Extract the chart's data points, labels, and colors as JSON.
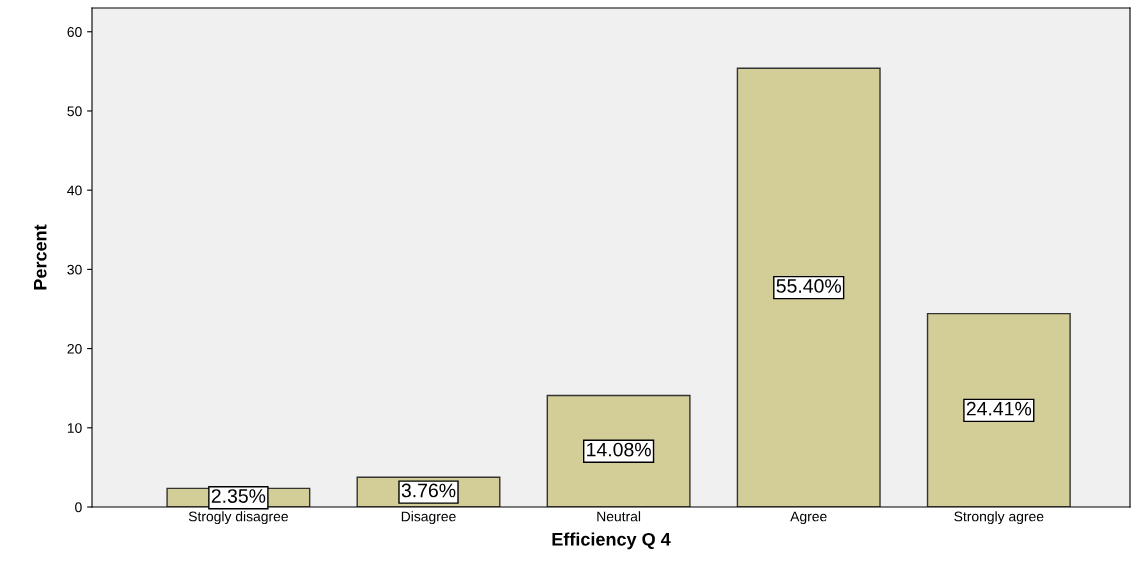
{
  "chart_data": {
    "type": "bar",
    "xlabel": "Efficiency Q 4",
    "ylabel": "Percent",
    "categories": [
      "Strogly disagree",
      "Disagree",
      "Neutral",
      "Agree",
      "Strongly agree"
    ],
    "values": [
      2.35,
      3.76,
      14.08,
      55.4,
      24.41
    ],
    "value_labels": [
      "2.35%",
      "3.76%",
      "14.08%",
      "55.40%",
      "24.41%"
    ],
    "color": "#d3ce97",
    "ylim": [
      0,
      63
    ],
    "yticks": [
      0,
      10,
      20,
      30,
      40,
      50,
      60
    ],
    "grid": false
  }
}
